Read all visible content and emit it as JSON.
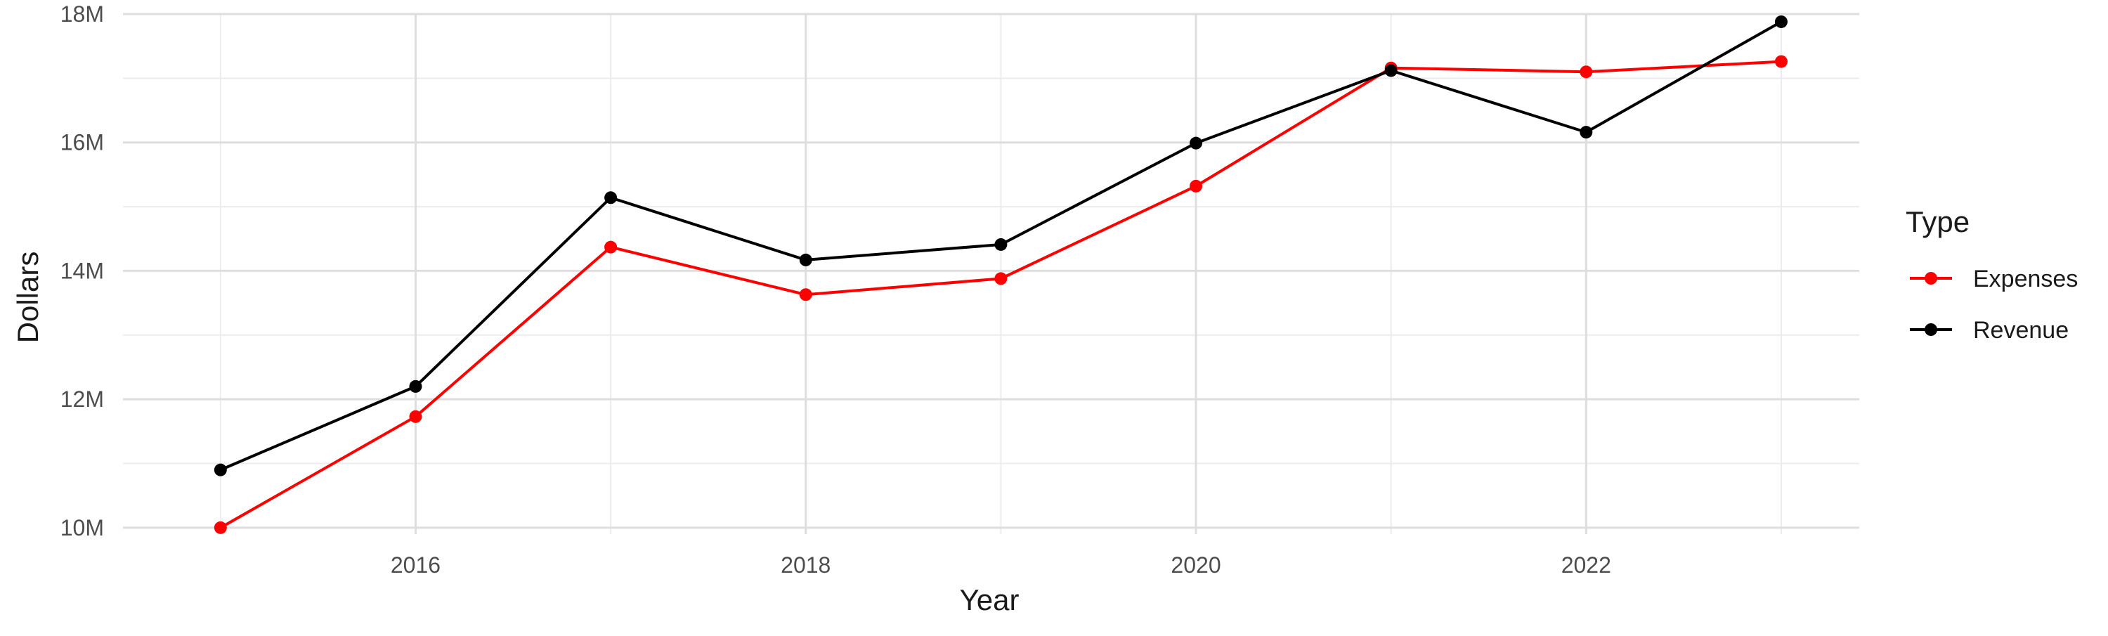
{
  "chart_data": {
    "type": "line",
    "title": "",
    "xlabel": "Year",
    "ylabel": "Dollars",
    "x": [
      2015,
      2016,
      2017,
      2018,
      2019,
      2020,
      2021,
      2022,
      2023
    ],
    "xlim": [
      2014.5,
      2023.4
    ],
    "ylim": [
      9.9,
      18.0
    ],
    "x_ticks": [
      2016,
      2018,
      2020,
      2022
    ],
    "x_tick_labels": [
      "2016",
      "2018",
      "2020",
      "2022"
    ],
    "y_ticks": [
      10,
      12,
      14,
      16,
      18
    ],
    "y_tick_labels": [
      "10M",
      "12M",
      "14M",
      "16M",
      "18M"
    ],
    "y_unit": "M",
    "grid": true,
    "legend": {
      "title": "Type",
      "position": "right"
    },
    "series": [
      {
        "name": "Expenses",
        "color": "#ff0000",
        "values": [
          10.0,
          11.73,
          14.37,
          13.63,
          13.88,
          15.32,
          17.16,
          17.1,
          17.26
        ]
      },
      {
        "name": "Revenue",
        "color": "#000000",
        "values": [
          10.9,
          12.2,
          15.14,
          14.17,
          14.41,
          15.99,
          17.12,
          16.16,
          17.88
        ]
      }
    ]
  }
}
